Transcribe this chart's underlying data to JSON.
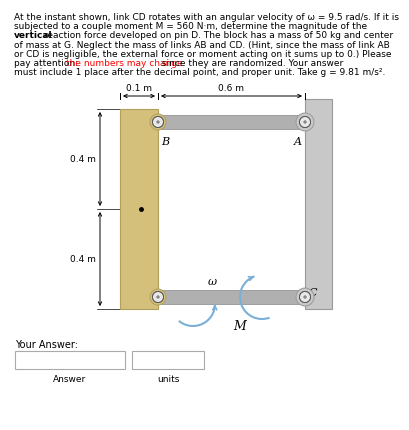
{
  "line1": "At the instant shown, link CD rotates with an angular velocity of ω = 9.5 rad/s. If it is",
  "line2": "subjected to a couple moment M = 560 N·m, determine the magnitude of the",
  "line3_bold": "vertical",
  "line3_rest": " reaction force developed on pin D. The block has a mass of 50 kg and center",
  "line4": "of mass at G. Neglect the mass of links AB and CD. (Hint, since the mass of link AB",
  "line5": "or CD is negligible, the external force or moment acting on it sums up to 0.) Please",
  "line6_pre": "pay attention: ",
  "line6_red": "the numbers may change",
  "line6_post": " since they are randomized. Your answer",
  "line7": "must include 1 place after the decimal point, and proper unit. Take g = 9.81 m/s².",
  "dim_top": "0.1 m",
  "dim_horiz": "0.6 m",
  "dim_left1": "0.4 m",
  "dim_left2": "0.4 m",
  "block_color": "#d4c07a",
  "block_edge": "#b0a060",
  "wall_color": "#c8c8c8",
  "wall_edge": "#999999",
  "link_color": "#b0b0b0",
  "link_edge": "#888888",
  "pin_fc": "#e8e8e8",
  "pin_ec": "#555555",
  "arrow_color": "#7ab0d8",
  "bg_color": "#ffffff",
  "your_answer": "Your Answer:",
  "answer_label1": "Answer",
  "answer_label2": "units",
  "text_fs": 6.5,
  "lh": 9.2
}
